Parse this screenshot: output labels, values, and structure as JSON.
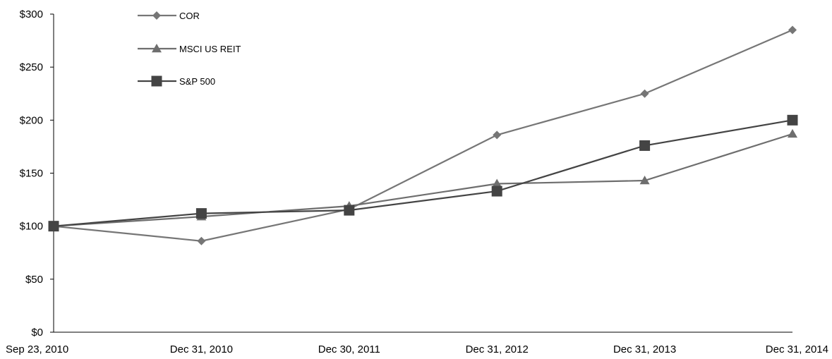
{
  "chart_data": {
    "type": "line",
    "categories": [
      "Sep 23, 2010",
      "Dec 31, 2010",
      "Dec 30, 2011",
      "Dec 31, 2012",
      "Dec 31, 2013",
      "Dec 31, 2014"
    ],
    "ylim": [
      0,
      300
    ],
    "yticks": [
      {
        "value": 0,
        "label": "$0"
      },
      {
        "value": 50,
        "label": "$50"
      },
      {
        "value": 100,
        "label": "$100"
      },
      {
        "value": 150,
        "label": "$150"
      },
      {
        "value": 200,
        "label": "$200"
      },
      {
        "value": 250,
        "label": "$250"
      },
      {
        "value": 300,
        "label": "$300"
      }
    ],
    "legend_position": "top-left",
    "grid": false,
    "series": [
      {
        "name": "COR",
        "marker": "diamond",
        "color": "#767676",
        "values": [
          100,
          86,
          116,
          186,
          225,
          285
        ]
      },
      {
        "name": "MSCI US REIT",
        "marker": "triangle",
        "color": "#6e6e6e",
        "values": [
          100,
          109,
          119,
          140,
          143,
          187
        ]
      },
      {
        "name": "S&P 500",
        "marker": "square",
        "color": "#444444",
        "values": [
          100,
          112,
          115,
          133,
          176,
          200
        ]
      }
    ]
  }
}
